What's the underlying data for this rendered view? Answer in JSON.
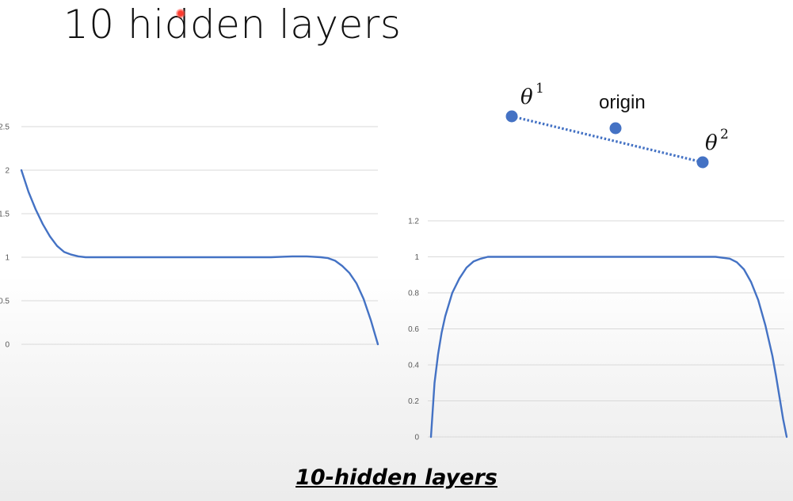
{
  "slide": {
    "title": "10 hidden layers",
    "caption": "10-hidden layers"
  },
  "diagram": {
    "points": [
      {
        "label": "θ",
        "superscript": "1"
      },
      {
        "label": "origin",
        "superscript": ""
      },
      {
        "label": "θ",
        "superscript": "2"
      }
    ],
    "color": "#4472c4"
  },
  "chart_data": [
    {
      "type": "line",
      "title": "",
      "xlabel": "",
      "ylabel": "",
      "ylim": [
        0,
        2.5
      ],
      "yticks": [
        "2.5",
        "2",
        "1.5",
        "1",
        "0.5",
        "0"
      ],
      "grid": true,
      "legend": "none",
      "color": "#4472c4",
      "series": [
        {
          "x": [
            0,
            0.02,
            0.04,
            0.06,
            0.08,
            0.1,
            0.12,
            0.14,
            0.16,
            0.18,
            0.2,
            0.3,
            0.4,
            0.5,
            0.6,
            0.7,
            0.76,
            0.8,
            0.84,
            0.86,
            0.88,
            0.9,
            0.92,
            0.94,
            0.96,
            0.98,
            1.0
          ],
          "values": [
            2.0,
            1.75,
            1.55,
            1.38,
            1.24,
            1.13,
            1.06,
            1.03,
            1.01,
            1.0,
            1.0,
            1.0,
            1.0,
            1.0,
            1.0,
            1.0,
            1.01,
            1.01,
            1.0,
            0.99,
            0.96,
            0.9,
            0.82,
            0.7,
            0.52,
            0.28,
            0.0
          ]
        }
      ]
    },
    {
      "type": "line",
      "title": "",
      "xlabel": "",
      "ylabel": "",
      "ylim": [
        0,
        1.2
      ],
      "yticks": [
        "1.2",
        "1",
        "0.8",
        "0.6",
        "0.4",
        "0.2",
        "0"
      ],
      "grid": true,
      "legend": "none",
      "color": "#4472c4",
      "series": [
        {
          "x": [
            0,
            0.01,
            0.02,
            0.03,
            0.04,
            0.06,
            0.08,
            0.1,
            0.12,
            0.14,
            0.16,
            0.2,
            0.3,
            0.4,
            0.5,
            0.6,
            0.7,
            0.76,
            0.8,
            0.84,
            0.86,
            0.88,
            0.9,
            0.92,
            0.94,
            0.96,
            0.97,
            0.98,
            0.99,
            1.0
          ],
          "values": [
            0.0,
            0.3,
            0.46,
            0.58,
            0.67,
            0.8,
            0.88,
            0.94,
            0.975,
            0.99,
            1.0,
            1.0,
            1.0,
            1.0,
            1.0,
            1.0,
            1.0,
            1.0,
            1.0,
            0.99,
            0.97,
            0.93,
            0.86,
            0.76,
            0.62,
            0.45,
            0.34,
            0.22,
            0.1,
            0.0
          ]
        }
      ]
    }
  ]
}
